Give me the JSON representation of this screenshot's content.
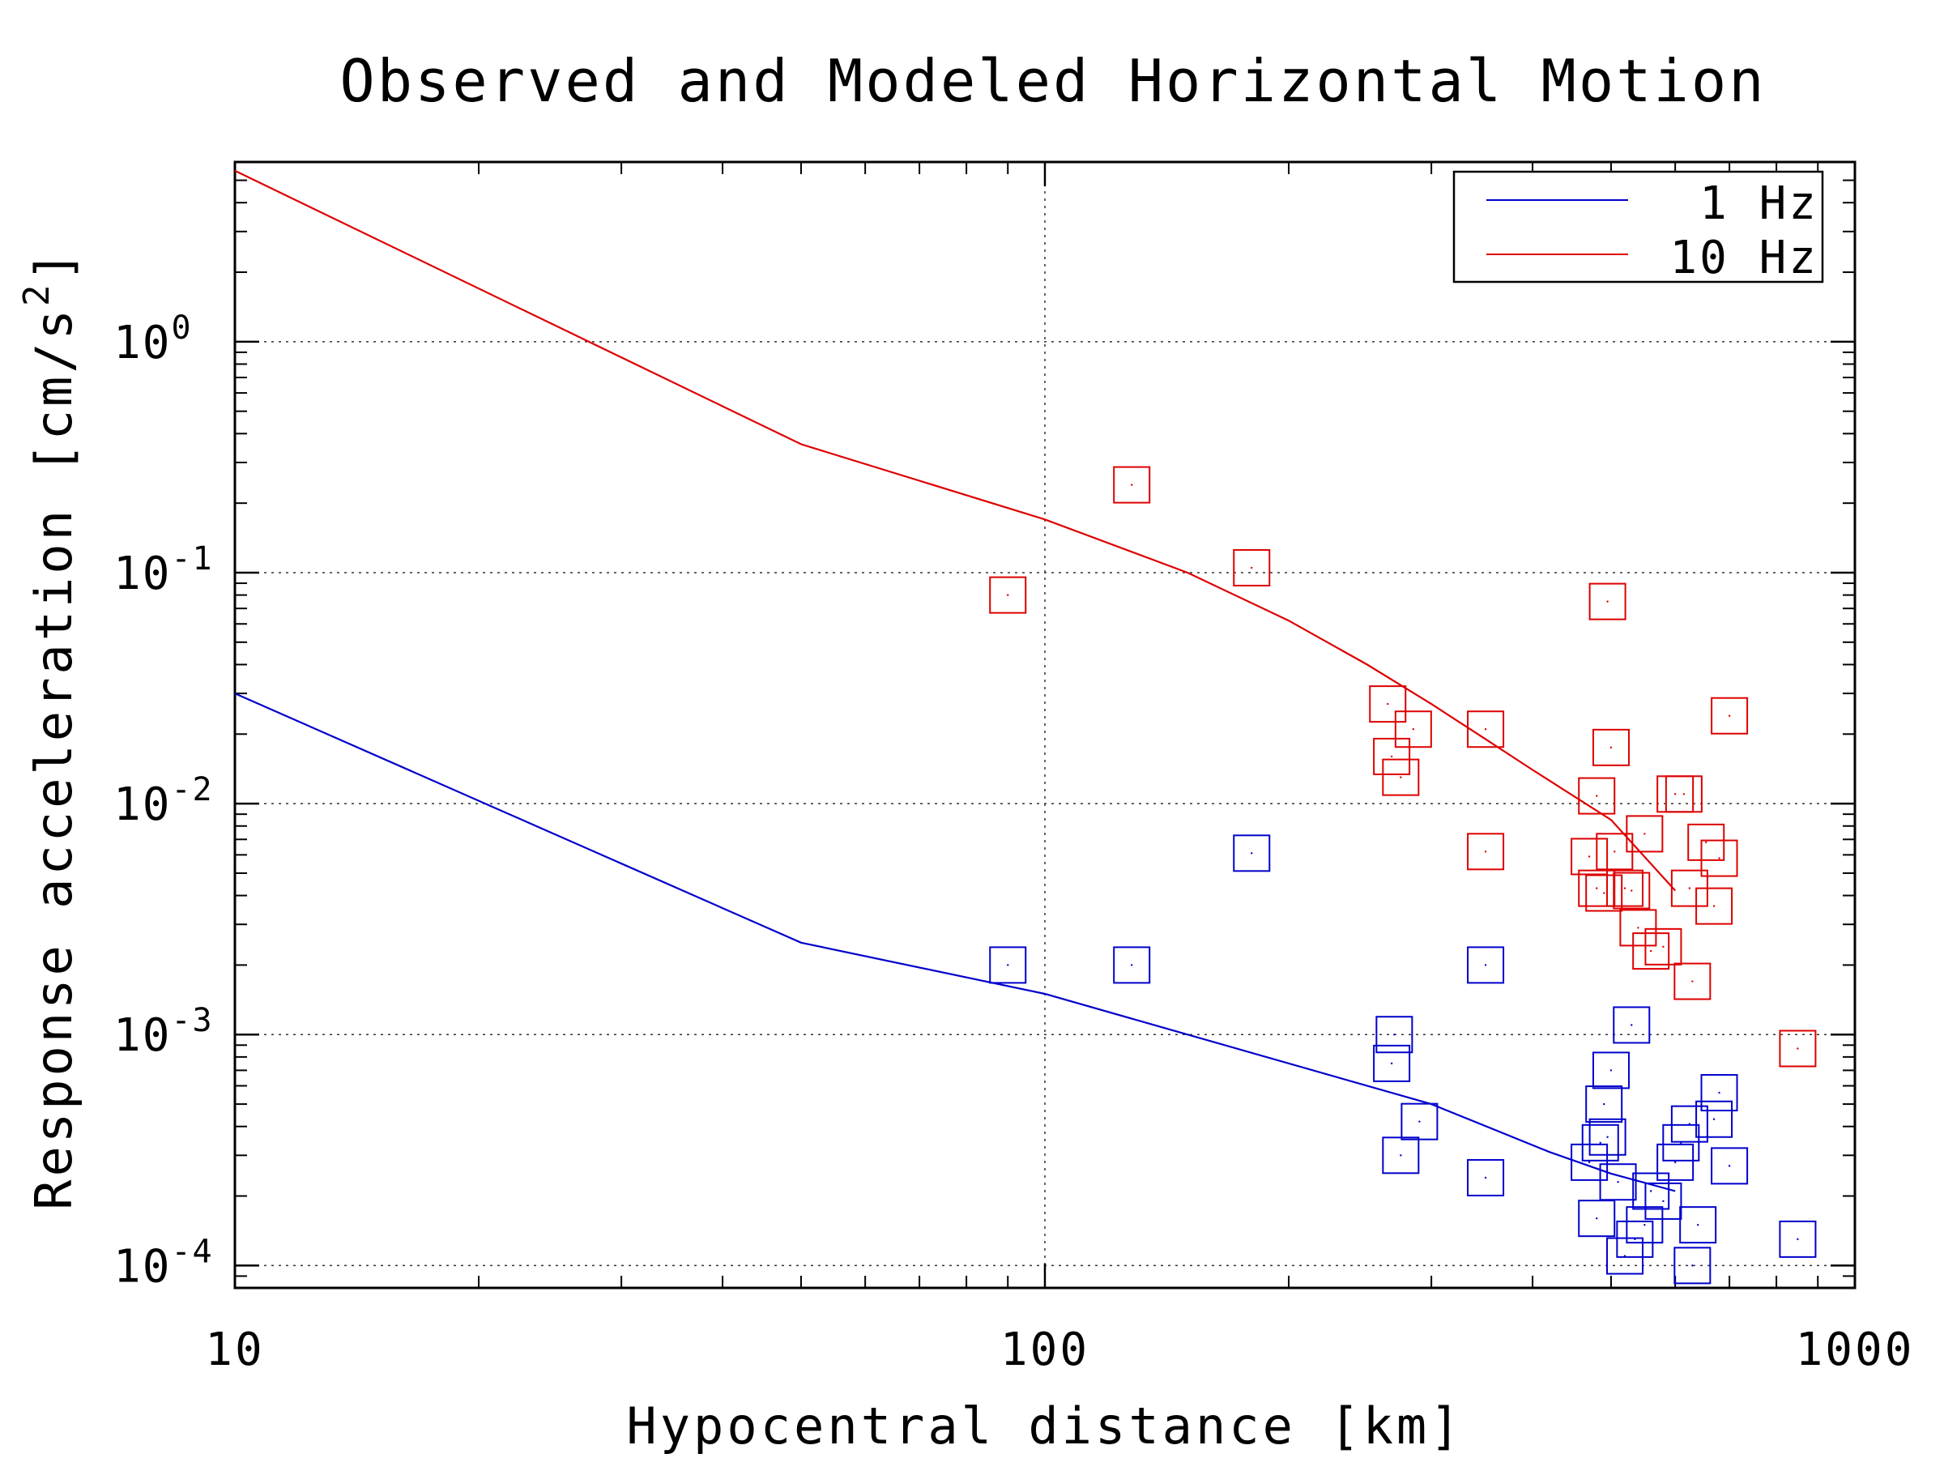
{
  "chart_data": {
    "type": "scatter",
    "title": "Observed and Modeled Horizontal Motion",
    "xlabel": "Hypocentral distance [km]",
    "ylabel_main": "Response acceleration [cm/s",
    "ylabel_sup": "2",
    "ylabel_end": "]",
    "x_scale": "log",
    "y_scale": "log",
    "xlim": [
      10,
      1000
    ],
    "ylim": [
      8e-05,
      6
    ],
    "x_ticks": [
      {
        "value": 10,
        "label": "10"
      },
      {
        "value": 100,
        "label": "100"
      },
      {
        "value": 1000,
        "label": "1000"
      }
    ],
    "y_ticks": [
      {
        "value": 1,
        "base": "10",
        "exp": "0"
      },
      {
        "value": 0.1,
        "base": "10",
        "exp": "-1"
      },
      {
        "value": 0.01,
        "base": "10",
        "exp": "-2"
      },
      {
        "value": 0.001,
        "base": "10",
        "exp": "-3"
      },
      {
        "value": 0.0001,
        "base": "10",
        "exp": "-4"
      }
    ],
    "grid": "dotted at major ticks",
    "legend_position": "top-right",
    "legend": [
      {
        "label": "1 Hz",
        "color": "#0000cc"
      },
      {
        "label": "10 Hz",
        "color": "#dd0000"
      }
    ],
    "series": [
      {
        "name": "1 Hz",
        "color": "#0000cc",
        "model": [
          [
            10,
            0.03
          ],
          [
            50,
            0.0025
          ],
          [
            100,
            0.0015
          ],
          [
            300,
            0.0005
          ],
          [
            420,
            0.00031
          ],
          [
            500,
            0.00025
          ],
          [
            600,
            0.00021
          ]
        ],
        "observed": [
          [
            90,
            0.002
          ],
          [
            128,
            0.002
          ],
          [
            180,
            0.0061
          ],
          [
            270,
            0.001
          ],
          [
            268,
            0.00075
          ],
          [
            275,
            0.0003
          ],
          [
            290,
            0.00042
          ],
          [
            350,
            0.00024
          ],
          [
            350,
            0.002
          ],
          [
            470,
            0.00028
          ],
          [
            480,
            0.00016
          ],
          [
            485,
            0.00034
          ],
          [
            490,
            0.0005
          ],
          [
            495,
            0.00036
          ],
          [
            500,
            0.0007
          ],
          [
            510,
            0.00023
          ],
          [
            520,
            0.00011
          ],
          [
            530,
            0.0011
          ],
          [
            535,
            0.00013
          ],
          [
            550,
            0.00015
          ],
          [
            560,
            0.00021
          ],
          [
            580,
            0.00019
          ],
          [
            600,
            0.00028
          ],
          [
            610,
            0.00034
          ],
          [
            625,
            0.00041
          ],
          [
            630,
            0.0001
          ],
          [
            640,
            0.00015
          ],
          [
            670,
            0.00043
          ],
          [
            680,
            0.00056
          ],
          [
            700,
            0.00027
          ],
          [
            850,
            0.00013
          ]
        ]
      },
      {
        "name": "10 Hz",
        "color": "#dd0000",
        "model": [
          [
            10,
            5.5
          ],
          [
            50,
            0.36
          ],
          [
            100,
            0.17
          ],
          [
            150,
            0.1
          ],
          [
            200,
            0.062
          ],
          [
            250,
            0.04
          ],
          [
            300,
            0.027
          ],
          [
            350,
            0.019
          ],
          [
            400,
            0.014
          ],
          [
            500,
            0.0085
          ],
          [
            600,
            0.0042
          ]
        ],
        "observed": [
          [
            90,
            0.08
          ],
          [
            128,
            0.24
          ],
          [
            180,
            0.105
          ],
          [
            265,
            0.027
          ],
          [
            268,
            0.016
          ],
          [
            275,
            0.013
          ],
          [
            285,
            0.021
          ],
          [
            350,
            0.021
          ],
          [
            350,
            0.0062
          ],
          [
            470,
            0.0059
          ],
          [
            480,
            0.0108
          ],
          [
            480,
            0.0043
          ],
          [
            490,
            0.0041
          ],
          [
            495,
            0.075
          ],
          [
            500,
            0.0175
          ],
          [
            505,
            0.0062
          ],
          [
            520,
            0.0043
          ],
          [
            530,
            0.0042
          ],
          [
            540,
            0.0029
          ],
          [
            550,
            0.0074
          ],
          [
            560,
            0.0023
          ],
          [
            580,
            0.0024
          ],
          [
            600,
            0.011
          ],
          [
            615,
            0.011
          ],
          [
            625,
            0.0043
          ],
          [
            630,
            0.0017
          ],
          [
            655,
            0.0068
          ],
          [
            670,
            0.0036
          ],
          [
            680,
            0.0058
          ],
          [
            700,
            0.024
          ],
          [
            850,
            0.00087
          ]
        ]
      }
    ]
  }
}
